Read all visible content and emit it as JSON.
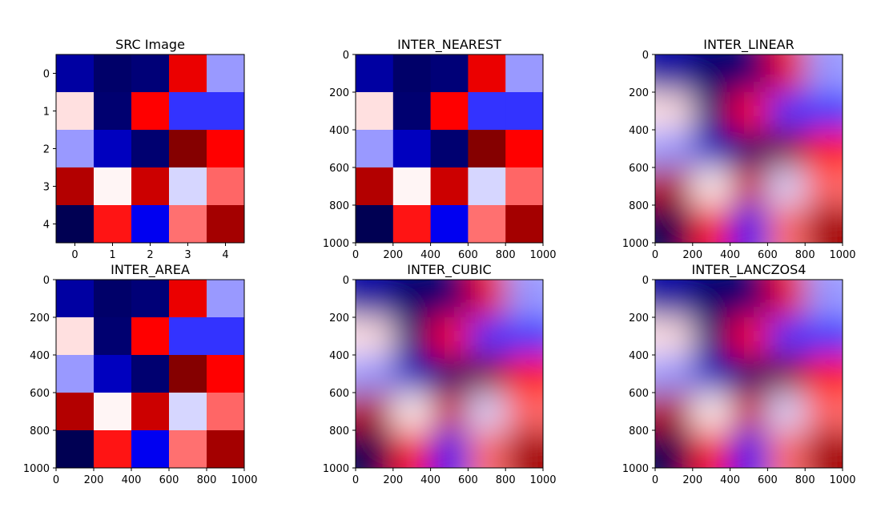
{
  "figure": {
    "background": "#ffffff",
    "colormap": "seismic"
  },
  "chart_data": [
    {
      "type": "heatmap",
      "title": "SRC Image",
      "render": "nearest",
      "x_ticks": [
        "0",
        "1",
        "2",
        "3",
        "4"
      ],
      "y_ticks": [
        "0",
        "1",
        "2",
        "3",
        "4"
      ],
      "xlim": [
        -0.5,
        4.5
      ],
      "ylim": [
        4.5,
        -0.5
      ],
      "grid": false,
      "values": [
        [
          0.12,
          0.04,
          0.06,
          0.79,
          0.4
        ],
        [
          0.53,
          0.05,
          0.75,
          0.3,
          0.3
        ],
        [
          0.4,
          0.16,
          0.05,
          0.99,
          0.75
        ],
        [
          0.9,
          0.51,
          0.85,
          0.46,
          0.65
        ],
        [
          0.01,
          0.73,
          0.23,
          0.64,
          0.93
        ]
      ]
    },
    {
      "type": "heatmap",
      "title": "INTER_NEAREST",
      "render": "nearest",
      "x_ticks": [
        "0",
        "200",
        "400",
        "600",
        "800",
        "1000"
      ],
      "y_ticks": [
        "0",
        "200",
        "400",
        "600",
        "800",
        "1000"
      ],
      "xlim": [
        0,
        1000
      ],
      "ylim": [
        1000,
        0
      ],
      "grid": false,
      "values": [
        [
          0.12,
          0.04,
          0.06,
          0.79,
          0.4
        ],
        [
          0.53,
          0.05,
          0.75,
          0.3,
          0.3
        ],
        [
          0.4,
          0.16,
          0.05,
          0.99,
          0.75
        ],
        [
          0.9,
          0.51,
          0.85,
          0.46,
          0.65
        ],
        [
          0.01,
          0.73,
          0.23,
          0.64,
          0.93
        ]
      ]
    },
    {
      "type": "heatmap",
      "title": "INTER_LINEAR",
      "render": "smooth",
      "x_ticks": [
        "0",
        "200",
        "400",
        "600",
        "800",
        "1000"
      ],
      "y_ticks": [
        "0",
        "200",
        "400",
        "600",
        "800",
        "1000"
      ],
      "xlim": [
        0,
        1000
      ],
      "ylim": [
        1000,
        0
      ],
      "grid": false,
      "values": [
        [
          0.12,
          0.04,
          0.06,
          0.79,
          0.4
        ],
        [
          0.53,
          0.05,
          0.75,
          0.3,
          0.3
        ],
        [
          0.4,
          0.16,
          0.05,
          0.99,
          0.75
        ],
        [
          0.9,
          0.51,
          0.85,
          0.46,
          0.65
        ],
        [
          0.01,
          0.73,
          0.23,
          0.64,
          0.93
        ]
      ]
    },
    {
      "type": "heatmap",
      "title": "INTER_AREA",
      "render": "nearest",
      "x_ticks": [
        "0",
        "200",
        "400",
        "600",
        "800",
        "1000"
      ],
      "y_ticks": [
        "0",
        "200",
        "400",
        "600",
        "800",
        "1000"
      ],
      "xlim": [
        0,
        1000
      ],
      "ylim": [
        1000,
        0
      ],
      "grid": false,
      "values": [
        [
          0.12,
          0.04,
          0.06,
          0.79,
          0.4
        ],
        [
          0.53,
          0.05,
          0.75,
          0.3,
          0.3
        ],
        [
          0.4,
          0.16,
          0.05,
          0.99,
          0.75
        ],
        [
          0.9,
          0.51,
          0.85,
          0.46,
          0.65
        ],
        [
          0.01,
          0.73,
          0.23,
          0.64,
          0.93
        ]
      ]
    },
    {
      "type": "heatmap",
      "title": "INTER_CUBIC",
      "render": "smooth",
      "x_ticks": [
        "0",
        "200",
        "400",
        "600",
        "800",
        "1000"
      ],
      "y_ticks": [
        "0",
        "200",
        "400",
        "600",
        "800",
        "1000"
      ],
      "xlim": [
        0,
        1000
      ],
      "ylim": [
        1000,
        0
      ],
      "grid": false,
      "values": [
        [
          0.12,
          0.04,
          0.06,
          0.79,
          0.4
        ],
        [
          0.53,
          0.05,
          0.75,
          0.3,
          0.3
        ],
        [
          0.4,
          0.16,
          0.05,
          0.99,
          0.75
        ],
        [
          0.9,
          0.51,
          0.85,
          0.46,
          0.65
        ],
        [
          0.01,
          0.73,
          0.23,
          0.64,
          0.93
        ]
      ]
    },
    {
      "type": "heatmap",
      "title": "INTER_LANCZOS4",
      "render": "smooth",
      "x_ticks": [
        "0",
        "200",
        "400",
        "600",
        "800",
        "1000"
      ],
      "y_ticks": [
        "0",
        "200",
        "400",
        "600",
        "800",
        "1000"
      ],
      "xlim": [
        0,
        1000
      ],
      "ylim": [
        1000,
        0
      ],
      "grid": false,
      "values": [
        [
          0.12,
          0.04,
          0.06,
          0.79,
          0.4
        ],
        [
          0.53,
          0.05,
          0.75,
          0.3,
          0.3
        ],
        [
          0.4,
          0.16,
          0.05,
          0.99,
          0.75
        ],
        [
          0.9,
          0.51,
          0.85,
          0.46,
          0.65
        ],
        [
          0.01,
          0.73,
          0.23,
          0.64,
          0.93
        ]
      ]
    }
  ]
}
